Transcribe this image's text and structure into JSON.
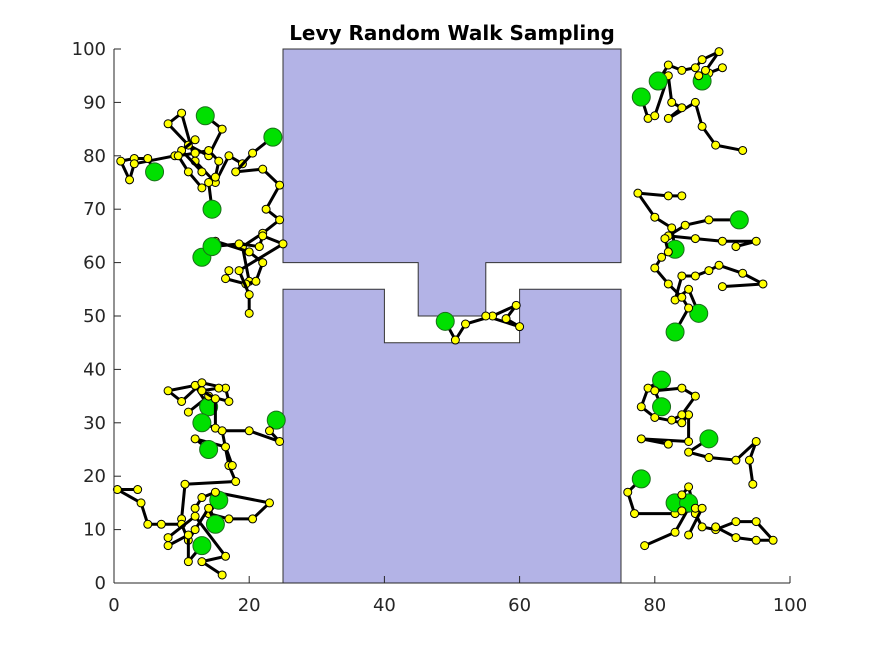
{
  "chart_data": {
    "type": "walk",
    "title": "Levy Random Walk Sampling",
    "xlim": [
      0,
      100
    ],
    "ylim": [
      0,
      100
    ],
    "xticks": [
      0,
      20,
      40,
      60,
      80,
      100
    ],
    "yticks": [
      0,
      10,
      20,
      30,
      40,
      50,
      60,
      70,
      80,
      90,
      100
    ],
    "line_color": "#000000",
    "marker_color": "#ffff00",
    "start_color": "#00e000",
    "obstacle_color": "#b3b3e6",
    "obstacles": [
      {
        "x": [
          25,
          75,
          75,
          55,
          55,
          45,
          45,
          25
        ],
        "y": [
          100,
          100,
          60,
          60,
          50,
          50,
          60,
          60
        ]
      },
      {
        "x": [
          25,
          75,
          75,
          60,
          60,
          40,
          40,
          25
        ],
        "y": [
          0,
          0,
          55,
          55,
          45,
          45,
          55,
          55
        ]
      }
    ],
    "series": [
      {
        "x": [
          13.5,
          16,
          14,
          11,
          8,
          10,
          12,
          15,
          17,
          19
        ],
        "values": [
          87.5,
          85,
          80,
          82,
          86,
          88,
          79,
          75,
          80,
          78.5
        ]
      },
      {
        "x": [
          23.5,
          20.5,
          18,
          22,
          24.5,
          22.5,
          24.5,
          22,
          19,
          20
        ],
        "values": [
          83.5,
          80.5,
          77,
          77.5,
          74.5,
          70,
          68,
          65.5,
          63,
          56.5
        ]
      },
      {
        "x": [
          6,
          5,
          3,
          1,
          2.3,
          3,
          9,
          12,
          10,
          13
        ],
        "values": [
          77,
          79.5,
          79.5,
          79,
          75.5,
          78.5,
          80,
          83,
          81,
          77
        ]
      },
      {
        "x": [
          14.5,
          14,
          13,
          11,
          9.5,
          12,
          14,
          15.5,
          15
        ],
        "values": [
          70,
          75,
          74,
          77,
          80,
          80.5,
          81,
          79,
          76
        ]
      },
      {
        "x": [
          13,
          15,
          20,
          22,
          21,
          19.5,
          16.5,
          17
        ],
        "values": [
          61,
          64,
          62,
          60,
          56.5,
          56,
          57,
          58.5
        ]
      },
      {
        "x": [
          14.5,
          18.5,
          21.5,
          22,
          25,
          18.5,
          20,
          20
        ],
        "values": [
          63,
          63.5,
          63,
          65,
          63.5,
          58.5,
          54,
          50.5
        ]
      },
      {
        "x": [
          14,
          12,
          8,
          10,
          13,
          16.5,
          17,
          14,
          11
        ],
        "values": [
          33,
          37,
          36,
          34,
          37.5,
          36.5,
          34,
          35,
          32
        ]
      },
      {
        "x": [
          13,
          15,
          15,
          13,
          15.5
        ],
        "values": [
          30,
          29,
          34.5,
          36,
          36.5
        ]
      },
      {
        "x": [
          24,
          23,
          24.5,
          20,
          16,
          17,
          18,
          10.5,
          10
        ],
        "values": [
          30.5,
          28.5,
          26.5,
          28.5,
          28.5,
          22,
          19,
          18.5,
          12
        ]
      },
      {
        "x": [
          14,
          12,
          16.5,
          17.5
        ],
        "values": [
          25,
          27,
          25.5,
          22
        ]
      },
      {
        "x": [
          15.5,
          14,
          17,
          20.5,
          23,
          15,
          13,
          12
        ],
        "values": [
          15.5,
          13,
          12,
          12,
          15,
          17,
          16,
          14
        ]
      },
      {
        "x": [
          15,
          14,
          12,
          11,
          10,
          7,
          5,
          4,
          0.5,
          3.5
        ],
        "values": [
          11,
          14,
          10,
          8,
          11,
          11,
          11,
          15,
          17.5,
          17.5
        ]
      },
      {
        "x": [
          13,
          11,
          11,
          8,
          8,
          12,
          16.5,
          13,
          16
        ],
        "values": [
          7,
          4,
          9,
          7,
          8.5,
          12.5,
          5,
          4,
          1.5
        ]
      },
      {
        "x": [
          78,
          79,
          80,
          82,
          82.5,
          84,
          82,
          86,
          87,
          89,
          93
        ],
        "values": [
          91,
          87,
          87.5,
          95,
          90,
          89,
          87,
          90,
          85.5,
          82,
          81
        ]
      },
      {
        "x": [
          80.5,
          82,
          84,
          86,
          87,
          89.5,
          87,
          88,
          90
        ],
        "values": [
          94,
          97,
          96,
          96.5,
          98,
          99.5,
          95,
          95.5,
          96.5
        ]
      },
      {
        "x": [
          87,
          86.5,
          87.5
        ],
        "values": [
          94,
          95,
          96
        ]
      },
      {
        "x": [
          92.5,
          88,
          84.5,
          82,
          86,
          90,
          95,
          92
        ],
        "values": [
          68,
          68,
          67,
          65,
          64.5,
          64,
          64,
          63
        ]
      },
      {
        "x": [
          83,
          82.5,
          80,
          77.5,
          82,
          84
        ],
        "values": [
          62.5,
          66.5,
          68.5,
          73,
          72.5,
          72.5
        ]
      },
      {
        "x": [
          86.5,
          85,
          83,
          84,
          86,
          88,
          89.5,
          93,
          96,
          90
        ],
        "values": [
          50.5,
          55,
          53,
          57.5,
          57.5,
          58.5,
          59.5,
          58,
          56,
          55.5
        ]
      },
      {
        "x": [
          83,
          85,
          84,
          82,
          80,
          81,
          82,
          81.5
        ],
        "values": [
          47,
          51.5,
          53.5,
          56,
          59,
          61,
          62,
          64.5
        ]
      },
      {
        "x": [
          81,
          79,
          78,
          80,
          84,
          85,
          85,
          78,
          82
        ],
        "values": [
          38,
          36.5,
          33,
          31,
          30,
          31.5,
          26.5,
          27,
          26
        ]
      },
      {
        "x": [
          81,
          80,
          84,
          86,
          84,
          82.5
        ],
        "values": [
          33,
          36,
          36.5,
          35,
          31.5,
          30.5
        ]
      },
      {
        "x": [
          88,
          85,
          88,
          92,
          95,
          94,
          94.5
        ],
        "values": [
          27,
          24.5,
          23.5,
          23,
          26.5,
          23,
          18.5
        ]
      },
      {
        "x": [
          78,
          76,
          77,
          83,
          85,
          83,
          78.5
        ],
        "values": [
          19.5,
          17,
          13,
          13,
          14,
          9.5,
          7
        ]
      },
      {
        "x": [
          83,
          85,
          86,
          87,
          89,
          92,
          95,
          97.5,
          95,
          92,
          89
        ],
        "values": [
          15,
          18,
          13,
          10.5,
          10,
          11.5,
          11.5,
          8,
          8,
          8.5,
          10.5
        ]
      },
      {
        "x": [
          85,
          84,
          84,
          86,
          87,
          85
        ],
        "values": [
          15,
          16.5,
          13.5,
          14,
          14,
          9
        ]
      },
      {
        "x": [
          49,
          50.5,
          52,
          56,
          59.5,
          58,
          60,
          55
        ],
        "values": [
          49,
          45.5,
          48.5,
          50,
          52,
          49.5,
          48,
          50
        ]
      }
    ]
  }
}
